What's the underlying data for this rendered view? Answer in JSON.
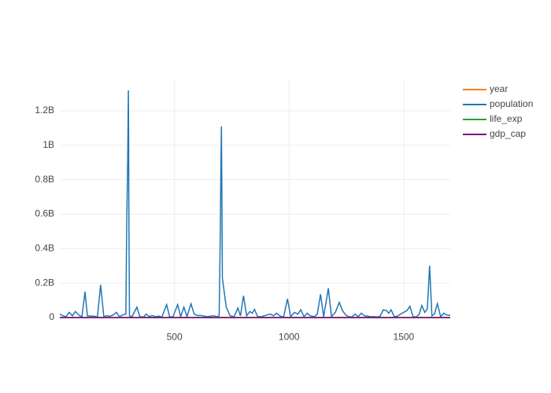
{
  "chart_data": {
    "type": "line",
    "series": [
      {
        "name": "year",
        "color": "#ff7f0e",
        "x": [
          0,
          1703
        ],
        "values": [
          1952,
          2007
        ]
      },
      {
        "name": "population",
        "color": "#1f77b4",
        "x": [
          0,
          14,
          27,
          41,
          55,
          68,
          82,
          96,
          110,
          120,
          137,
          151,
          164,
          178,
          192,
          205,
          219,
          233,
          247,
          260,
          274,
          288,
          292,
          296,
          299,
          300,
          301,
          304,
          315,
          336,
          349,
          366,
          377,
          390,
          404,
          418,
          432,
          445,
          466,
          479,
          493,
          514,
          527,
          541,
          555,
          572,
          586,
          599,
          616,
          630,
          644,
          658,
          671,
          685,
          695,
          700,
          703,
          705,
          707,
          709,
          726,
          743,
          760,
          777,
          788,
          801,
          815,
          829,
          839,
          849,
          863,
          880,
          904,
          918,
          932,
          945,
          959,
          976,
          993,
          1007,
          1024,
          1038,
          1051,
          1065,
          1079,
          1092,
          1110,
          1123,
          1137,
          1151,
          1171,
          1185,
          1202,
          1219,
          1233,
          1247,
          1260,
          1274,
          1288,
          1301,
          1315,
          1329,
          1342,
          1356,
          1370,
          1384,
          1397,
          1411,
          1425,
          1435,
          1445,
          1459,
          1473,
          1486,
          1500,
          1514,
          1527,
          1541,
          1555,
          1568,
          1579,
          1592,
          1603,
          1613,
          1623,
          1634,
          1647,
          1661,
          1675,
          1688,
          1703
        ],
        "values": [
          20000000,
          10000000,
          5000000,
          30000000,
          10000000,
          35000000,
          15000000,
          3000000,
          150000000,
          10000000,
          8000000,
          8000000,
          3000000,
          190000000,
          5000000,
          10000000,
          8000000,
          15000000,
          30000000,
          5000000,
          15000000,
          20000000,
          550000000,
          900000000,
          1318683096,
          1050000000,
          600000000,
          10000000,
          5000000,
          60000000,
          5000000,
          3000000,
          20000000,
          5000000,
          12000000,
          5000000,
          8000000,
          3000000,
          75000000,
          5000000,
          3000000,
          75000000,
          5000000,
          60000000,
          5000000,
          80000000,
          20000000,
          12000000,
          12000000,
          8000000,
          5000000,
          8000000,
          10000000,
          5000000,
          10000000,
          500000000,
          900000000,
          1110396331,
          700000000,
          230000000,
          60000000,
          10000000,
          5000000,
          55000000,
          10000000,
          127000000,
          10000000,
          35000000,
          25000000,
          48000000,
          5000000,
          5000000,
          15000000,
          20000000,
          10000000,
          25000000,
          10000000,
          3000000,
          108000000,
          5000000,
          30000000,
          20000000,
          45000000,
          5000000,
          25000000,
          10000000,
          5000000,
          20000000,
          135000000,
          5000000,
          170000000,
          5000000,
          30000000,
          88000000,
          40000000,
          15000000,
          5000000,
          3000000,
          20000000,
          5000000,
          25000000,
          10000000,
          8000000,
          5000000,
          5000000,
          3000000,
          8000000,
          45000000,
          40000000,
          25000000,
          45000000,
          5000000,
          8000000,
          20000000,
          30000000,
          40000000,
          65000000,
          5000000,
          3000000,
          20000000,
          70000000,
          30000000,
          50000000,
          301139947,
          10000000,
          20000000,
          80000000,
          5000000,
          25000000,
          15000000,
          12311143
        ]
      },
      {
        "name": "life_exp",
        "color": "#2ca02c",
        "x": [
          0,
          1703
        ],
        "values": [
          28.801,
          43.487
        ]
      },
      {
        "name": "gdp_cap",
        "color": "#800080",
        "x": [
          0,
          1703
        ],
        "values": [
          779.4453145,
          469.7092981
        ]
      }
    ],
    "xlim": [
      0,
      1703
    ],
    "xticks": [
      500,
      1000,
      1500
    ],
    "ylim": [
      -16000000,
      1387000000
    ],
    "yticks": [
      {
        "value": 0,
        "label": "0"
      },
      {
        "value": 200000000,
        "label": "0.2B"
      },
      {
        "value": 400000000,
        "label": "0.4B"
      },
      {
        "value": 600000000,
        "label": "0.6B"
      },
      {
        "value": 800000000,
        "label": "0.8B"
      },
      {
        "value": 1000000000,
        "label": "1B"
      },
      {
        "value": 1200000000,
        "label": "1.2B"
      }
    ],
    "grid": true,
    "legend": "top-right"
  }
}
